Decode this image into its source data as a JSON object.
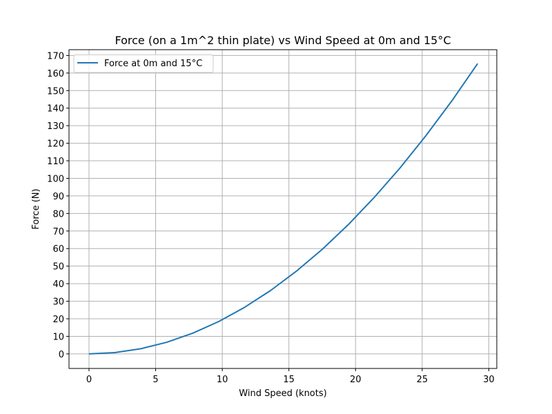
{
  "chart_data": {
    "type": "line",
    "title": "Force (on a 1m^2 thin plate) vs Wind Speed at 0m and 15°C",
    "xlabel": "Wind Speed (knots)",
    "ylabel": "Force (N)",
    "xlim": [
      -1.5,
      30.6
    ],
    "ylim": [
      -8.3,
      173.3
    ],
    "xticks": [
      0,
      5,
      10,
      15,
      20,
      25,
      30
    ],
    "yticks": [
      0,
      10,
      20,
      30,
      40,
      50,
      60,
      70,
      80,
      90,
      100,
      110,
      120,
      130,
      140,
      150,
      160,
      170
    ],
    "grid": true,
    "legend_position": "upper-left",
    "series": [
      {
        "name": "Force at 0m and 15°C",
        "color": "#1f77b4",
        "x": [
          0,
          1.94,
          3.89,
          5.83,
          7.78,
          9.72,
          11.66,
          13.61,
          15.55,
          17.5,
          19.44,
          21.38,
          23.33,
          25.27,
          27.22,
          29.16
        ],
        "y": [
          0,
          0.74,
          2.94,
          6.62,
          11.76,
          18.38,
          26.46,
          36.02,
          47.04,
          59.54,
          73.5,
          88.94,
          105.84,
          124.22,
          144.06,
          165.38
        ]
      }
    ]
  }
}
